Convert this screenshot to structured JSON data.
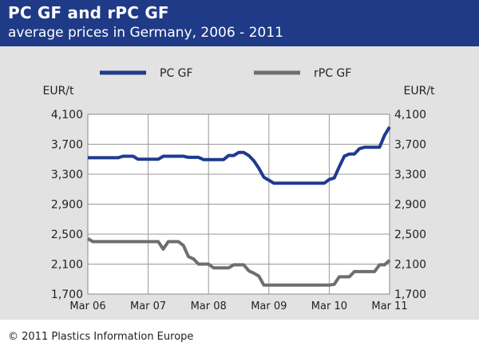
{
  "header": {
    "title": "PC GF and rPC GF",
    "subtitle": "average prices in Germany, 2006 - 2011"
  },
  "footer": {
    "copyright": "© 2011 Plastics Information Europe"
  },
  "colors": {
    "header_bg": "#1f3a87",
    "panel_bg": "#e2e2e2",
    "pc_gf": "#1f3a8f",
    "rpc_gf": "#6e6e6e"
  },
  "chart_data": {
    "type": "line",
    "title": "PC GF and rPC GF",
    "subtitle": "average prices in Germany, 2006 - 2011",
    "ylabel_left": "EUR/t",
    "ylabel_right": "EUR/t",
    "ylim": [
      1700,
      4100
    ],
    "yticks": [
      1700,
      2100,
      2500,
      2900,
      3300,
      3700,
      4100
    ],
    "ytick_labels": [
      "1,700",
      "2,100",
      "2,500",
      "2,900",
      "3,300",
      "3,700",
      "4,100"
    ],
    "xlim": [
      0,
      60
    ],
    "xticks": [
      0,
      12,
      24,
      36,
      48,
      60
    ],
    "xtick_labels": [
      "Mar 06",
      "Mar 07",
      "Mar 08",
      "Mar 09",
      "Mar 10",
      "Mar 11"
    ],
    "grid": true,
    "legend_position": "top",
    "series": [
      {
        "name": "PC GF",
        "color": "#1f3a8f",
        "x": [
          0,
          1,
          2,
          3,
          4,
          5,
          6,
          7,
          8,
          9,
          10,
          11,
          12,
          13,
          14,
          15,
          16,
          17,
          18,
          19,
          20,
          21,
          22,
          23,
          24,
          25,
          26,
          27,
          28,
          29,
          30,
          31,
          32,
          33,
          34,
          35,
          36,
          37,
          38,
          39,
          40,
          41,
          42,
          43,
          44,
          45,
          46,
          47,
          48,
          49,
          50,
          51,
          52,
          53,
          54,
          55,
          56,
          57,
          58,
          59,
          60
        ],
        "values": [
          3520,
          3520,
          3520,
          3520,
          3520,
          3520,
          3520,
          3540,
          3540,
          3540,
          3500,
          3500,
          3500,
          3500,
          3500,
          3540,
          3540,
          3540,
          3540,
          3540,
          3525,
          3525,
          3525,
          3495,
          3495,
          3495,
          3495,
          3495,
          3550,
          3550,
          3590,
          3590,
          3550,
          3480,
          3380,
          3260,
          3220,
          3180,
          3180,
          3180,
          3180,
          3180,
          3180,
          3180,
          3180,
          3180,
          3180,
          3180,
          3230,
          3250,
          3400,
          3540,
          3570,
          3570,
          3640,
          3660,
          3660,
          3660,
          3660,
          3820,
          3930
        ]
      },
      {
        "name": "rPC GF",
        "color": "#6e6e6e",
        "x": [
          0,
          1,
          2,
          3,
          4,
          5,
          6,
          7,
          8,
          9,
          10,
          11,
          12,
          13,
          14,
          15,
          16,
          17,
          18,
          19,
          20,
          21,
          22,
          23,
          24,
          25,
          26,
          27,
          28,
          29,
          30,
          31,
          32,
          33,
          34,
          35,
          36,
          37,
          38,
          39,
          40,
          41,
          42,
          43,
          44,
          45,
          46,
          47,
          48,
          49,
          50,
          51,
          52,
          53,
          54,
          55,
          56,
          57,
          58,
          59,
          60
        ],
        "values": [
          2440,
          2400,
          2400,
          2400,
          2400,
          2400,
          2400,
          2400,
          2400,
          2400,
          2400,
          2400,
          2400,
          2400,
          2400,
          2300,
          2400,
          2400,
          2400,
          2350,
          2200,
          2170,
          2100,
          2100,
          2100,
          2050,
          2050,
          2050,
          2050,
          2090,
          2090,
          2090,
          2010,
          1980,
          1940,
          1820,
          1820,
          1820,
          1820,
          1820,
          1820,
          1820,
          1820,
          1820,
          1820,
          1820,
          1820,
          1820,
          1820,
          1830,
          1930,
          1930,
          1930,
          2000,
          2000,
          2000,
          2000,
          2000,
          2090,
          2090,
          2150
        ]
      }
    ]
  }
}
